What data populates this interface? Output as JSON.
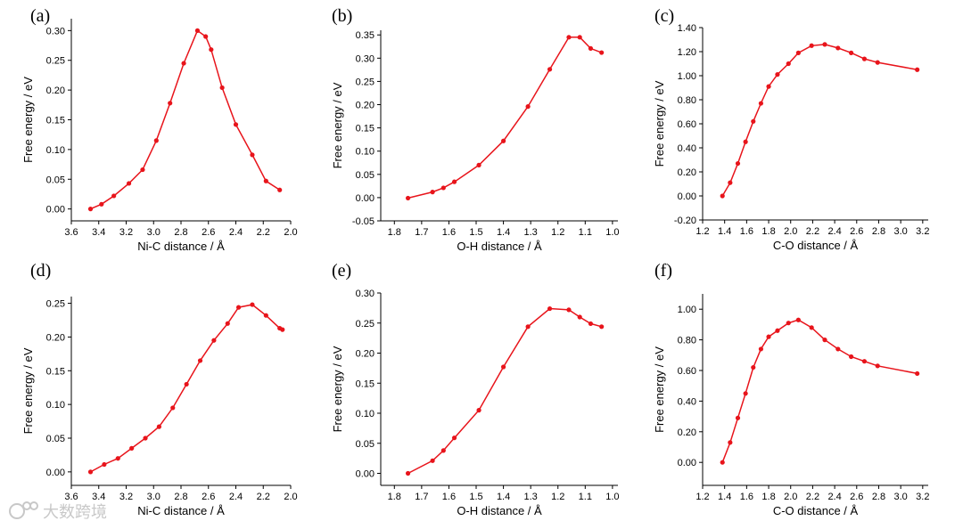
{
  "chart_data": [
    {
      "type": "line",
      "panel_label": "(a)",
      "xlabel": "Ni-C distance / Å",
      "ylabel": "Free energy / eV",
      "xlim": [
        3.6,
        2.0
      ],
      "ylim": [
        -0.02,
        0.32
      ],
      "x_ticks": [
        "3.6",
        "3.4",
        "3.2",
        "3.0",
        "2.8",
        "2.6",
        "2.4",
        "2.2",
        "2.0"
      ],
      "y_ticks": [
        "0.00",
        "0.05",
        "0.10",
        "0.15",
        "0.20",
        "0.25",
        "0.30"
      ],
      "series": [
        {
          "x": [
            3.46,
            3.38,
            3.29,
            3.18,
            3.08,
            2.98,
            2.88,
            2.78,
            2.68,
            2.62,
            2.58,
            2.5,
            2.4,
            2.28,
            2.18,
            2.08
          ],
          "y": [
            0.0,
            0.008,
            0.022,
            0.043,
            0.066,
            0.115,
            0.178,
            0.245,
            0.3,
            0.29,
            0.268,
            0.204,
            0.142,
            0.091,
            0.047,
            0.032
          ]
        }
      ]
    },
    {
      "type": "line",
      "panel_label": "(b)",
      "xlabel": "O-H distance / Å",
      "ylabel": "Free energy / eV",
      "xlim": [
        1.85,
        0.98
      ],
      "ylim": [
        -0.05,
        0.36
      ],
      "x_ticks": [
        "1.8",
        "1.7",
        "1.6",
        "1.5",
        "1.4",
        "1.3",
        "1.2",
        "1.1",
        "1.0"
      ],
      "y_ticks": [
        "-0.05",
        "0.00",
        "0.05",
        "0.10",
        "0.15",
        "0.20",
        "0.25",
        "0.30",
        "0.35"
      ],
      "series": [
        {
          "x": [
            1.75,
            1.66,
            1.62,
            1.58,
            1.49,
            1.4,
            1.31,
            1.23,
            1.16,
            1.12,
            1.08,
            1.04
          ],
          "y": [
            -0.001,
            0.012,
            0.021,
            0.034,
            0.07,
            0.122,
            0.196,
            0.276,
            0.345,
            0.345,
            0.321,
            0.312
          ]
        }
      ]
    },
    {
      "type": "line",
      "panel_label": "(c)",
      "xlabel": "C-O distance / Å",
      "ylabel": "Free energy / eV",
      "xlim": [
        1.2,
        3.25
      ],
      "ylim": [
        -0.2,
        1.4
      ],
      "x_ticks": [
        "1.2",
        "1.4",
        "1.6",
        "1.8",
        "2.0",
        "2.2",
        "2.4",
        "2.6",
        "2.8",
        "3.0",
        "3.2"
      ],
      "y_ticks": [
        "-0.20",
        "0.00",
        "0.20",
        "0.40",
        "0.60",
        "0.80",
        "1.00",
        "1.20",
        "1.40"
      ],
      "series": [
        {
          "x": [
            1.38,
            1.45,
            1.52,
            1.59,
            1.66,
            1.73,
            1.8,
            1.88,
            1.98,
            2.07,
            2.19,
            2.31,
            2.43,
            2.55,
            2.67,
            2.79,
            3.15
          ],
          "y": [
            0.0,
            0.11,
            0.27,
            0.45,
            0.62,
            0.77,
            0.91,
            1.01,
            1.1,
            1.19,
            1.25,
            1.26,
            1.23,
            1.19,
            1.14,
            1.11,
            1.05
          ]
        }
      ]
    },
    {
      "type": "line",
      "panel_label": "(d)",
      "xlabel": "Ni-C distance / Å",
      "ylabel": "Free energy / eV",
      "xlim": [
        3.6,
        2.0
      ],
      "ylim": [
        -0.02,
        0.26
      ],
      "x_ticks": [
        "3.6",
        "3.4",
        "3.2",
        "3.0",
        "2.8",
        "2.6",
        "2.4",
        "2.2",
        "2.0"
      ],
      "y_ticks": [
        "0.00",
        "0.05",
        "0.10",
        "0.15",
        "0.20",
        "0.25"
      ],
      "series": [
        {
          "x": [
            3.46,
            3.36,
            3.26,
            3.16,
            3.06,
            2.96,
            2.86,
            2.76,
            2.66,
            2.56,
            2.46,
            2.38,
            2.28,
            2.18,
            2.08,
            2.06
          ],
          "y": [
            0.0,
            0.011,
            0.02,
            0.035,
            0.05,
            0.067,
            0.095,
            0.13,
            0.165,
            0.195,
            0.22,
            0.244,
            0.248,
            0.232,
            0.213,
            0.211
          ]
        }
      ]
    },
    {
      "type": "line",
      "panel_label": "(e)",
      "xlabel": "O-H distance / Å",
      "ylabel": "Free energy / eV",
      "xlim": [
        1.85,
        0.98
      ],
      "ylim": [
        -0.02,
        0.3
      ],
      "x_ticks": [
        "1.8",
        "1.7",
        "1.6",
        "1.5",
        "1.4",
        "1.3",
        "1.2",
        "1.1",
        "1.0"
      ],
      "y_ticks": [
        "0.00",
        "0.05",
        "0.10",
        "0.15",
        "0.20",
        "0.25",
        "0.30"
      ],
      "series": [
        {
          "x": [
            1.75,
            1.66,
            1.62,
            1.58,
            1.49,
            1.4,
            1.31,
            1.23,
            1.16,
            1.12,
            1.08,
            1.04
          ],
          "y": [
            0.0,
            0.021,
            0.038,
            0.059,
            0.105,
            0.177,
            0.244,
            0.274,
            0.272,
            0.26,
            0.249,
            0.244
          ]
        }
      ]
    },
    {
      "type": "line",
      "panel_label": "(f)",
      "xlabel": "C-O distance / Å",
      "ylabel": "Free energy / eV",
      "xlim": [
        1.2,
        3.25
      ],
      "ylim": [
        -0.15,
        1.1
      ],
      "x_ticks": [
        "1.2",
        "1.4",
        "1.6",
        "1.8",
        "2.0",
        "2.2",
        "2.4",
        "2.6",
        "2.8",
        "3.0",
        "3.2"
      ],
      "y_ticks": [
        "0.00",
        "0.20",
        "0.40",
        "0.60",
        "0.80",
        "1.00"
      ],
      "series": [
        {
          "x": [
            1.38,
            1.45,
            1.52,
            1.59,
            1.66,
            1.73,
            1.8,
            1.88,
            1.98,
            2.07,
            2.19,
            2.31,
            2.43,
            2.55,
            2.67,
            2.79,
            3.15
          ],
          "y": [
            0.0,
            0.13,
            0.29,
            0.45,
            0.62,
            0.74,
            0.82,
            0.86,
            0.91,
            0.93,
            0.88,
            0.8,
            0.74,
            0.69,
            0.66,
            0.63,
            0.58
          ]
        }
      ]
    }
  ],
  "colors": {
    "series": "#e8141b",
    "axis": "#000000",
    "background": "#ffffff",
    "watermark": "#c8c8c8"
  },
  "watermark": {
    "text": "大数跨境",
    "icon": "watermark-logo-icon"
  }
}
